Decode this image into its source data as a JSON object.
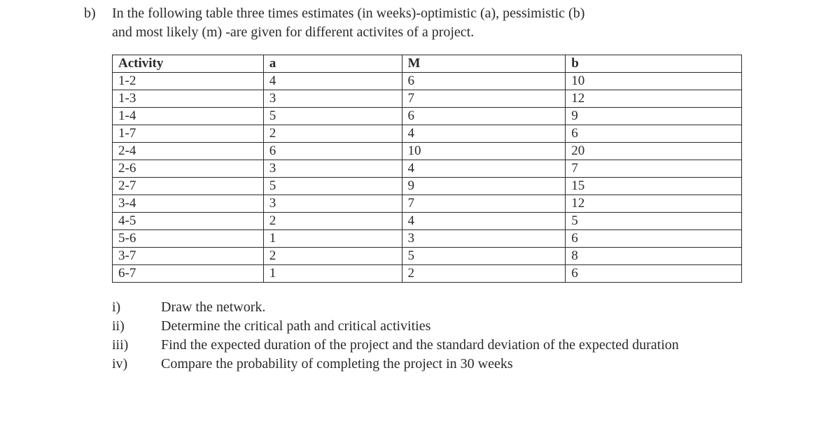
{
  "question": {
    "number": "b)",
    "text_line1": "In the following table three times estimates (in weeks)-optimistic (a), pessimistic (b)",
    "text_line2": "and most likely (m) -are given for different activites of a project."
  },
  "table": {
    "columns": [
      "Activity",
      "a",
      "M",
      "b"
    ],
    "col_widths": [
      "24%",
      "22%",
      "26%",
      "28%"
    ],
    "rows": [
      [
        "1-2",
        "4",
        "6",
        "10"
      ],
      [
        "1-3",
        "3",
        "7",
        "12"
      ],
      [
        "1-4",
        "5",
        "6",
        "9"
      ],
      [
        "1-7",
        "2",
        "4",
        "6"
      ],
      [
        "2-4",
        "6",
        "10",
        "20"
      ],
      [
        "2-6",
        "3",
        "4",
        "7"
      ],
      [
        "2-7",
        "5",
        "9",
        "15"
      ],
      [
        "3-4",
        "3",
        "7",
        "12"
      ],
      [
        "4-5",
        "2",
        "4",
        "5"
      ],
      [
        "5-6",
        "1",
        "3",
        "6"
      ],
      [
        "3-7",
        "2",
        "5",
        "8"
      ],
      [
        "6-7",
        "1",
        "2",
        "6"
      ]
    ]
  },
  "subparts": [
    {
      "num": "i)",
      "text": "Draw the network."
    },
    {
      "num": "ii)",
      "text": "Determine the critical path and critical activities"
    },
    {
      "num": "iii)",
      "text": "Find the expected duration of the project and the standard deviation of the expected duration"
    },
    {
      "num": "iv)",
      "text": "Compare the probability of completing the project in 30 weeks"
    }
  ]
}
